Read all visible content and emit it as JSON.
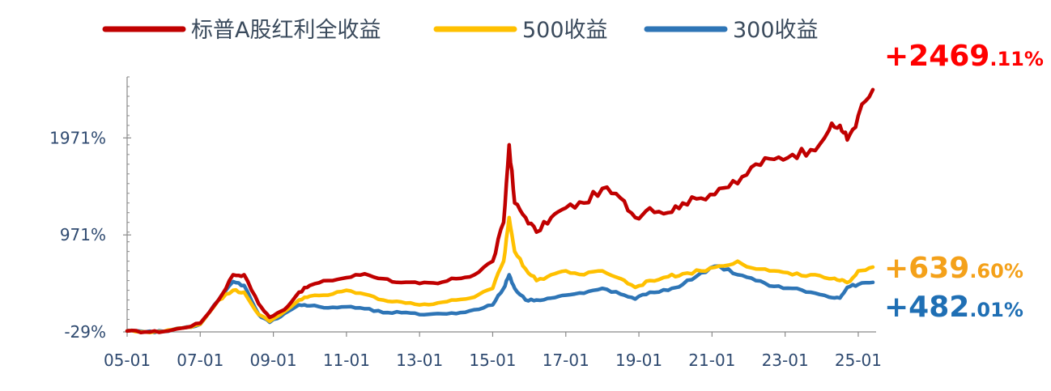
{
  "chart_data": {
    "type": "line",
    "x_ticks": [
      "05-01",
      "07-01",
      "09-01",
      "11-01",
      "13-01",
      "15-01",
      "17-01",
      "19-01",
      "21-01",
      "23-01",
      "25-01"
    ],
    "y_ticks": [
      "1971%",
      "971%",
      "-29%"
    ],
    "y_tick_values": [
      1971,
      971,
      -29
    ],
    "ylim": [
      -29,
      2600
    ],
    "xlim": [
      2005.0,
      2025.4
    ],
    "grid": false,
    "legend_position": "top",
    "series": [
      {
        "name": "标普A股红利全收益",
        "color": "#c00000",
        "end_value_int": "+2469",
        "end_value_dec": ".11%",
        "end_label_color": "#ff0000",
        "points": [
          [
            2005.0,
            -20
          ],
          [
            2005.5,
            -29
          ],
          [
            2006.0,
            -25
          ],
          [
            2006.5,
            10
          ],
          [
            2007.0,
            60
          ],
          [
            2007.5,
            300
          ],
          [
            2007.9,
            560
          ],
          [
            2008.2,
            560
          ],
          [
            2008.6,
            260
          ],
          [
            2008.9,
            120
          ],
          [
            2009.3,
            200
          ],
          [
            2009.7,
            380
          ],
          [
            2010.0,
            450
          ],
          [
            2010.5,
            500
          ],
          [
            2011.0,
            530
          ],
          [
            2011.5,
            570
          ],
          [
            2012.0,
            520
          ],
          [
            2012.5,
            480
          ],
          [
            2013.0,
            470
          ],
          [
            2013.5,
            470
          ],
          [
            2014.0,
            520
          ],
          [
            2014.5,
            560
          ],
          [
            2015.0,
            700
          ],
          [
            2015.3,
            1100
          ],
          [
            2015.45,
            1900
          ],
          [
            2015.6,
            1300
          ],
          [
            2015.9,
            1150
          ],
          [
            2016.2,
            1000
          ],
          [
            2016.6,
            1150
          ],
          [
            2017.0,
            1250
          ],
          [
            2017.5,
            1300
          ],
          [
            2018.0,
            1450
          ],
          [
            2018.5,
            1350
          ],
          [
            2018.9,
            1150
          ],
          [
            2019.3,
            1250
          ],
          [
            2019.8,
            1200
          ],
          [
            2020.2,
            1300
          ],
          [
            2020.7,
            1350
          ],
          [
            2021.2,
            1450
          ],
          [
            2021.7,
            1500
          ],
          [
            2022.2,
            1700
          ],
          [
            2022.7,
            1750
          ],
          [
            2023.2,
            1800
          ],
          [
            2023.7,
            1850
          ],
          [
            2024.2,
            2050
          ],
          [
            2024.5,
            2100
          ],
          [
            2024.7,
            1950
          ],
          [
            2025.0,
            2200
          ],
          [
            2025.4,
            2469.11
          ]
        ]
      },
      {
        "name": "500收益",
        "color": "#ffc000",
        "end_value_int": "+639",
        "end_value_dec": ".60%",
        "end_label_color": "#f4a11a",
        "points": [
          [
            2005.0,
            -20
          ],
          [
            2005.5,
            -29
          ],
          [
            2006.0,
            -25
          ],
          [
            2006.5,
            10
          ],
          [
            2007.0,
            50
          ],
          [
            2007.5,
            300
          ],
          [
            2007.9,
            400
          ],
          [
            2008.2,
            380
          ],
          [
            2008.6,
            150
          ],
          [
            2008.9,
            80
          ],
          [
            2009.3,
            180
          ],
          [
            2009.7,
            300
          ],
          [
            2010.0,
            340
          ],
          [
            2010.5,
            350
          ],
          [
            2011.0,
            400
          ],
          [
            2011.5,
            360
          ],
          [
            2012.0,
            300
          ],
          [
            2012.5,
            280
          ],
          [
            2013.0,
            250
          ],
          [
            2013.5,
            270
          ],
          [
            2014.0,
            300
          ],
          [
            2014.5,
            330
          ],
          [
            2015.0,
            420
          ],
          [
            2015.3,
            700
          ],
          [
            2015.45,
            1150
          ],
          [
            2015.6,
            800
          ],
          [
            2015.9,
            620
          ],
          [
            2016.2,
            500
          ],
          [
            2016.6,
            560
          ],
          [
            2017.0,
            600
          ],
          [
            2017.5,
            560
          ],
          [
            2018.0,
            600
          ],
          [
            2018.5,
            520
          ],
          [
            2018.9,
            430
          ],
          [
            2019.3,
            500
          ],
          [
            2019.8,
            540
          ],
          [
            2020.2,
            570
          ],
          [
            2020.7,
            600
          ],
          [
            2021.2,
            650
          ],
          [
            2021.7,
            700
          ],
          [
            2022.2,
            620
          ],
          [
            2022.7,
            600
          ],
          [
            2023.2,
            560
          ],
          [
            2023.7,
            560
          ],
          [
            2024.2,
            520
          ],
          [
            2024.5,
            500
          ],
          [
            2024.7,
            480
          ],
          [
            2025.0,
            600
          ],
          [
            2025.4,
            639.6
          ]
        ]
      },
      {
        "name": "300收益",
        "color": "#2e75b6",
        "end_value_int": "+482",
        "end_value_dec": ".01%",
        "end_label_color": "#1f6fb4",
        "points": [
          [
            2005.0,
            -20
          ],
          [
            2005.5,
            -29
          ],
          [
            2006.0,
            -25
          ],
          [
            2006.5,
            10
          ],
          [
            2007.0,
            50
          ],
          [
            2007.5,
            300
          ],
          [
            2007.9,
            490
          ],
          [
            2008.2,
            450
          ],
          [
            2008.6,
            150
          ],
          [
            2008.9,
            70
          ],
          [
            2009.3,
            160
          ],
          [
            2009.7,
            250
          ],
          [
            2010.0,
            240
          ],
          [
            2010.5,
            220
          ],
          [
            2011.0,
            230
          ],
          [
            2011.5,
            210
          ],
          [
            2012.0,
            170
          ],
          [
            2012.5,
            170
          ],
          [
            2013.0,
            150
          ],
          [
            2013.5,
            160
          ],
          [
            2014.0,
            160
          ],
          [
            2014.5,
            200
          ],
          [
            2015.0,
            250
          ],
          [
            2015.3,
            420
          ],
          [
            2015.45,
            560
          ],
          [
            2015.6,
            420
          ],
          [
            2015.9,
            300
          ],
          [
            2016.2,
            300
          ],
          [
            2016.6,
            320
          ],
          [
            2017.0,
            350
          ],
          [
            2017.5,
            370
          ],
          [
            2018.0,
            420
          ],
          [
            2018.5,
            360
          ],
          [
            2018.9,
            310
          ],
          [
            2019.3,
            380
          ],
          [
            2019.8,
            400
          ],
          [
            2020.2,
            460
          ],
          [
            2020.7,
            580
          ],
          [
            2021.2,
            650
          ],
          [
            2021.7,
            560
          ],
          [
            2022.2,
            500
          ],
          [
            2022.7,
            440
          ],
          [
            2023.2,
            420
          ],
          [
            2023.7,
            380
          ],
          [
            2024.2,
            330
          ],
          [
            2024.5,
            320
          ],
          [
            2024.7,
            430
          ],
          [
            2025.0,
            460
          ],
          [
            2025.4,
            482.01
          ]
        ]
      }
    ]
  }
}
